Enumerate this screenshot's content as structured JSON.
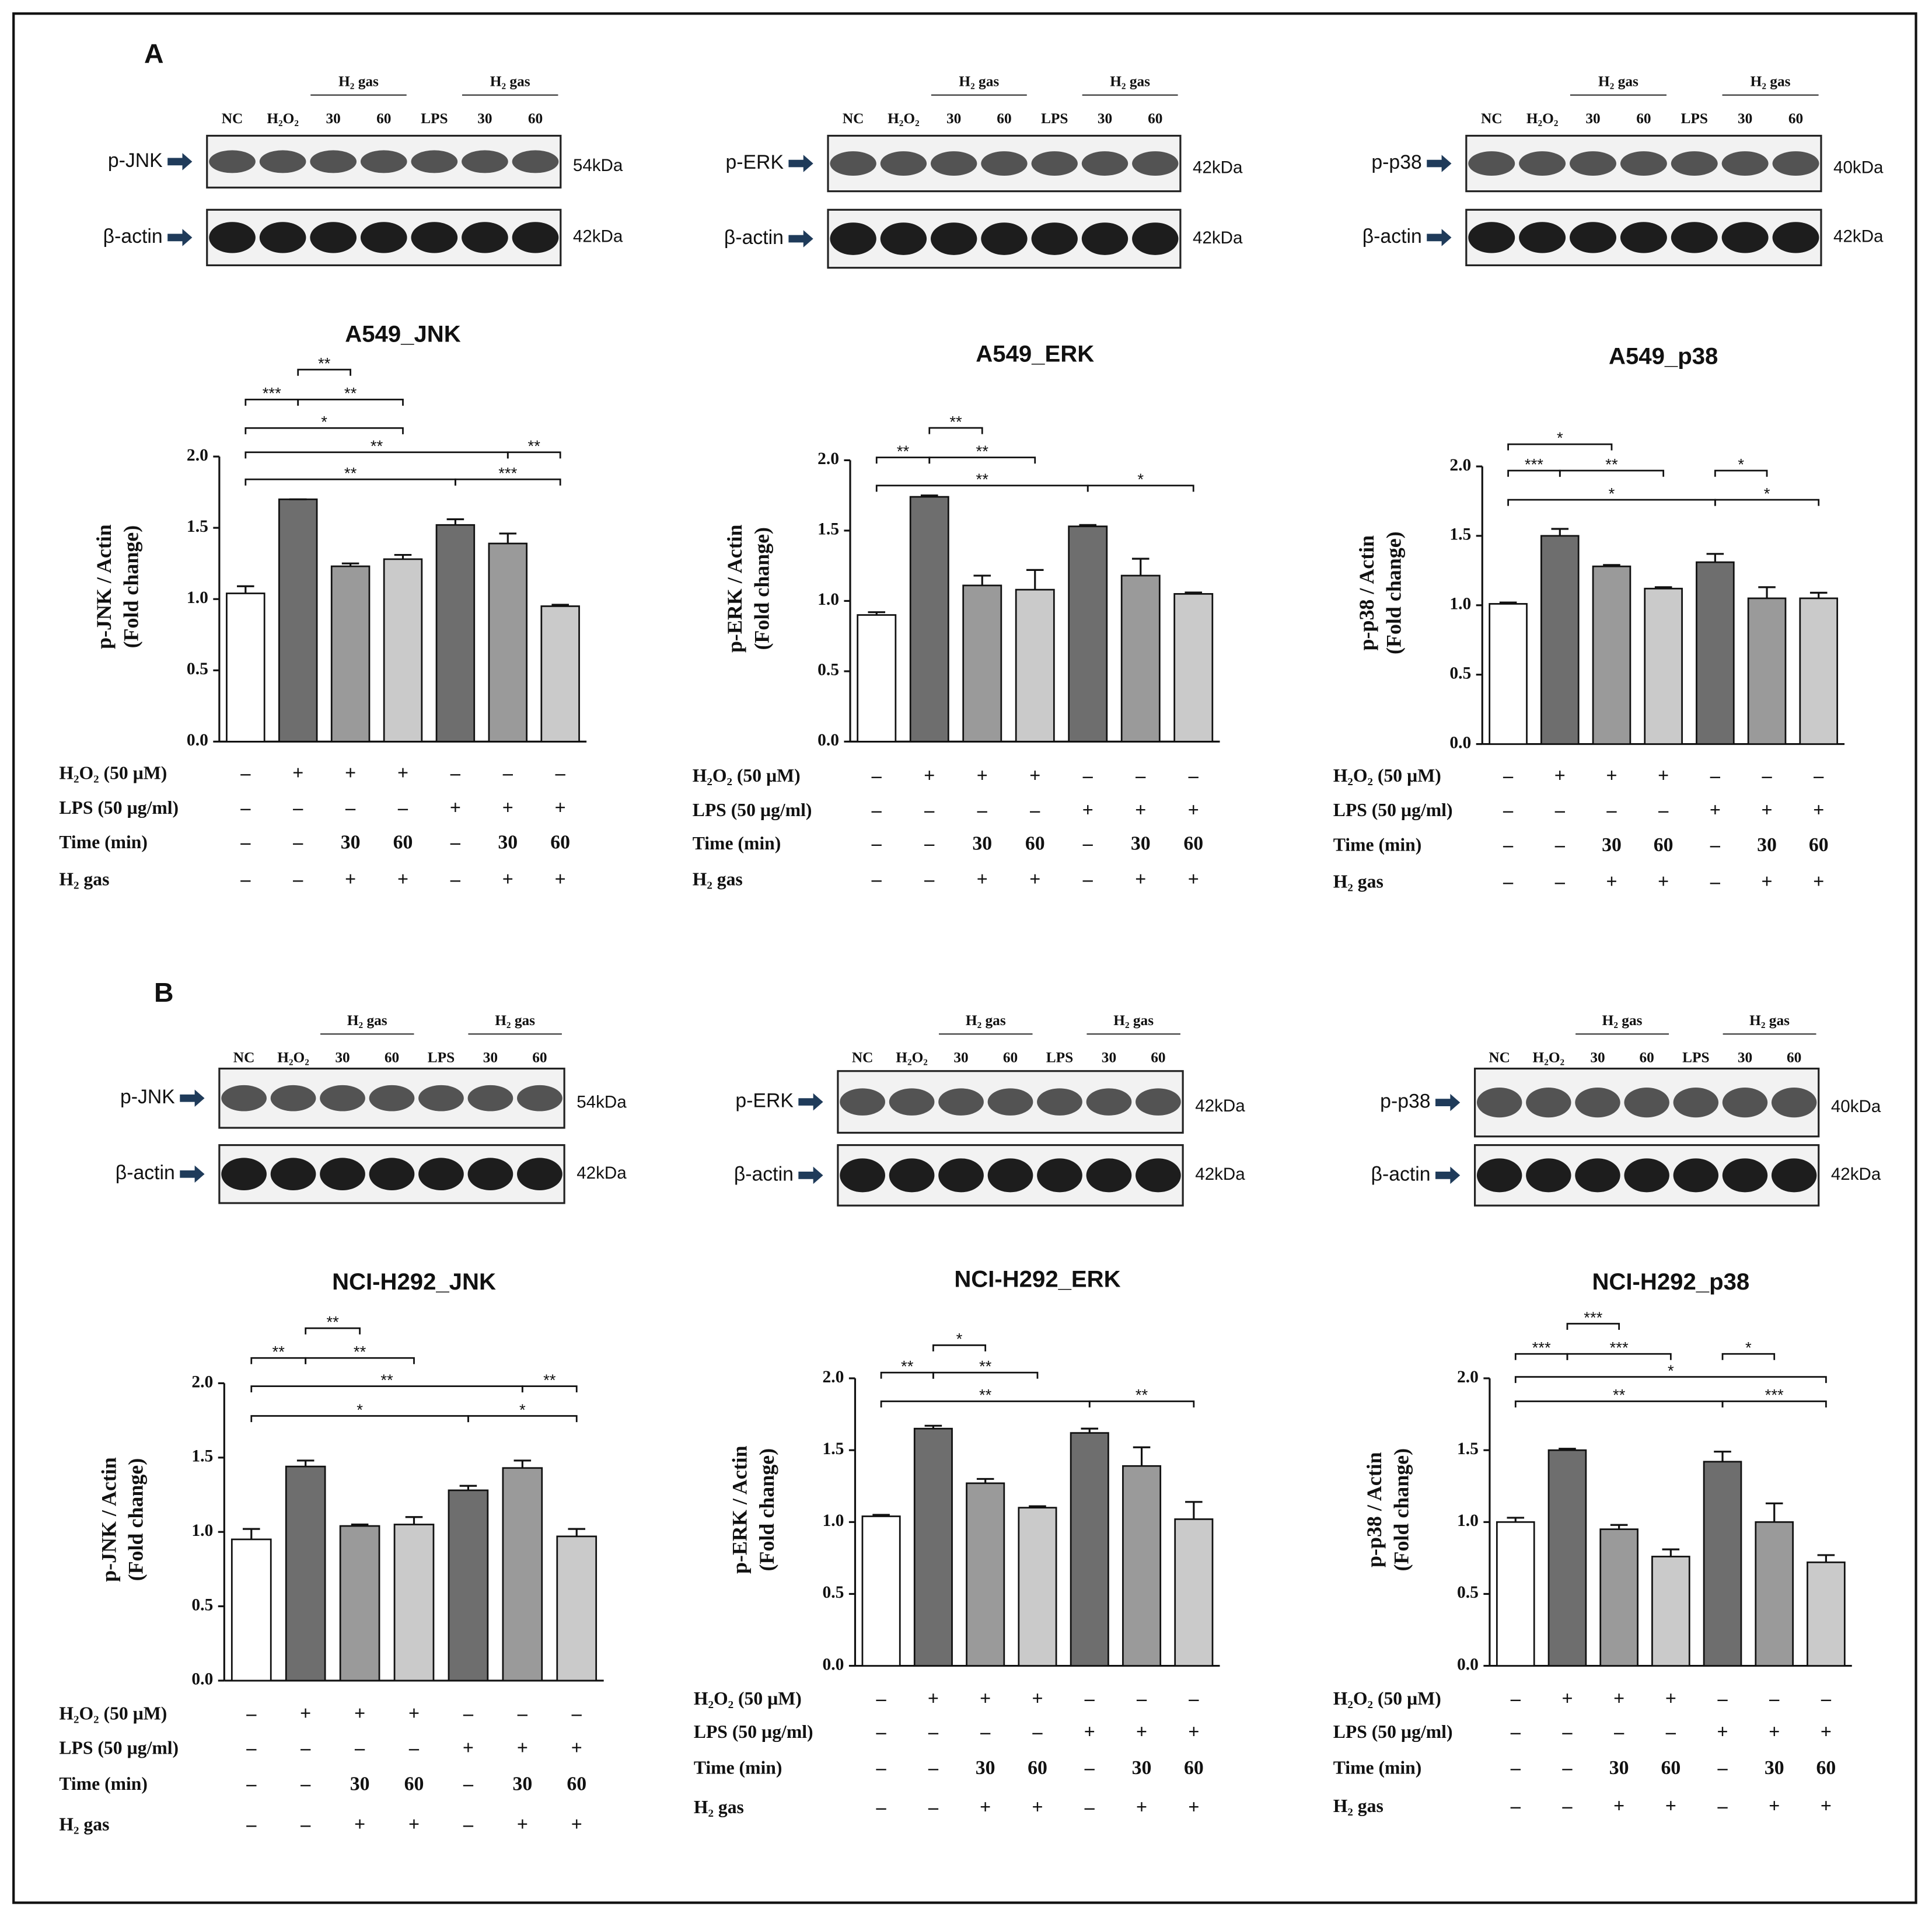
{
  "panel_labels": [
    "A",
    "B"
  ],
  "blots": [
    {
      "lanes": [
        "NC",
        "H₂O₂",
        "30",
        "60",
        "LPS",
        "30",
        "60"
      ],
      "groups": [
        "H₂ gas",
        "H₂ gas"
      ],
      "rows": [
        {
          "name": "p-JNK",
          "size": "54kDa"
        },
        {
          "name": "β-actin",
          "size": "42kDa"
        }
      ]
    },
    {
      "lanes": [
        "NC",
        "H₂O₂",
        "30",
        "60",
        "LPS",
        "30",
        "60"
      ],
      "groups": [
        "H₂ gas",
        "H₂ gas"
      ],
      "rows": [
        {
          "name": "p-ERK",
          "size": "42kDa"
        },
        {
          "name": "β-actin",
          "size": "42kDa"
        }
      ]
    },
    {
      "lanes": [
        "NC",
        "H₂O₂",
        "30",
        "60",
        "LPS",
        "30",
        "60"
      ],
      "groups": [
        "H₂ gas",
        "H₂ gas"
      ],
      "rows": [
        {
          "name": "p-p38",
          "size": "40kDa"
        },
        {
          "name": "β-actin",
          "size": "42kDa"
        }
      ]
    },
    {
      "lanes": [
        "NC",
        "H₂O₂",
        "30",
        "60",
        "LPS",
        "30",
        "60"
      ],
      "groups": [
        "H₂ gas",
        "H₂ gas"
      ],
      "rows": [
        {
          "name": "p-JNK",
          "size": "54kDa"
        },
        {
          "name": "β-actin",
          "size": "42kDa"
        }
      ]
    },
    {
      "lanes": [
        "NC",
        "H₂O₂",
        "30",
        "60",
        "LPS",
        "30",
        "60"
      ],
      "groups": [
        "H₂ gas",
        "H₂ gas"
      ],
      "rows": [
        {
          "name": "p-ERK",
          "size": "42kDa"
        },
        {
          "name": "β-actin",
          "size": "42kDa"
        }
      ]
    },
    {
      "lanes": [
        "NC",
        "H₂O₂",
        "30",
        "60",
        "LPS",
        "30",
        "60"
      ],
      "groups": [
        "H₂ gas",
        "H₂ gas"
      ],
      "rows": [
        {
          "name": "p-p38",
          "size": "40kDa"
        },
        {
          "name": "β-actin",
          "size": "42kDa"
        }
      ]
    }
  ],
  "chart_data": [
    {
      "type": "bar",
      "title": "A549_JNK",
      "y_label": [
        "p-JNK / Actin",
        "(Fold change)"
      ],
      "categories": [
        null,
        null,
        null,
        null,
        null,
        null,
        null
      ],
      "values": [
        1.04,
        1.7,
        1.23,
        1.28,
        1.52,
        1.39,
        0.95
      ],
      "errors": [
        0.05,
        0,
        0.02,
        0.03,
        0.04,
        0.07,
        0.01
      ],
      "colors": [
        "#ffffff",
        "#6e6e6e",
        "#9a9a9a",
        "#cacaca",
        "#6e6e6e",
        "#9a9a9a",
        "#cacaca"
      ],
      "ylim": [
        0,
        2
      ],
      "yticks": [
        {
          "value": 0,
          "label": "0.0"
        },
        0.5,
        {
          "value": 1,
          "label": "1.0"
        },
        1.5,
        {
          "value": 2,
          "label": "2.0"
        }
      ],
      "annotations": [
        {
          "from": 1,
          "to": 2,
          "label": "**",
          "y": 2.61
        },
        {
          "from": 0,
          "to": 1,
          "label": "***",
          "y": 2.4
        },
        {
          "from": 1,
          "to": 3,
          "label": "**",
          "y": 2.4
        },
        {
          "from": 0,
          "to": 3,
          "label": "*",
          "y": 2.2
        },
        {
          "from": 0,
          "to": 5,
          "label": "**",
          "y": 2.03
        },
        {
          "from": 5,
          "to": 6,
          "label": "**",
          "y": 2.03
        },
        {
          "from": 0,
          "to": 4,
          "label": "**",
          "y": 1.84
        },
        {
          "from": 4,
          "to": 6,
          "label": "***",
          "y": 1.84
        }
      ],
      "conditions": [
        {
          "name": "H₂O₂ (50 µM)",
          "values": [
            "–",
            "+",
            "+",
            "+",
            "–",
            "–",
            "–"
          ]
        },
        {
          "name": "LPS (50 µg/ml)",
          "values": [
            "–",
            "–",
            "–",
            "–",
            "+",
            "+",
            "+"
          ]
        },
        {
          "name": "Time (min)",
          "values": [
            "–",
            "–",
            "30",
            "60",
            "–",
            "30",
            "60"
          ]
        },
        {
          "name": "H₂ gas",
          "values": [
            "–",
            "–",
            "+",
            "+",
            "–",
            "+",
            "+"
          ]
        }
      ]
    },
    {
      "type": "bar",
      "title": "A549_ERK",
      "y_label": [
        "p-ERK / Actin",
        "(Fold change)"
      ],
      "categories": [
        null,
        null,
        null,
        null,
        null,
        null,
        null
      ],
      "values": [
        0.9,
        1.74,
        1.11,
        1.08,
        1.53,
        1.18,
        1.05
      ],
      "errors": [
        0.02,
        0.01,
        0.07,
        0.14,
        0.01,
        0.12,
        0.01
      ],
      "colors": [
        "#ffffff",
        "#6e6e6e",
        "#9a9a9a",
        "#cacaca",
        "#6e6e6e",
        "#9a9a9a",
        "#cacaca"
      ],
      "ylim": [
        0,
        2
      ],
      "yticks": [
        {
          "value": 0,
          "label": "0.0"
        },
        0.5,
        {
          "value": 1,
          "label": "1.0"
        },
        1.5,
        {
          "value": 2,
          "label": "2.0"
        }
      ],
      "annotations": [
        {
          "from": 1,
          "to": 2,
          "label": "**",
          "y": 2.23
        },
        {
          "from": 0,
          "to": 1,
          "label": "**",
          "y": 2.02
        },
        {
          "from": 1,
          "to": 3,
          "label": "**",
          "y": 2.02
        },
        {
          "from": 0,
          "to": 4,
          "label": "**",
          "y": 1.82
        },
        {
          "from": 4,
          "to": 6,
          "label": "*",
          "y": 1.82
        }
      ],
      "conditions": [
        {
          "name": "H₂O₂ (50 µM)",
          "values": [
            "–",
            "+",
            "+",
            "+",
            "–",
            "–",
            "–"
          ]
        },
        {
          "name": "LPS (50 µg/ml)",
          "values": [
            "–",
            "–",
            "–",
            "–",
            "+",
            "+",
            "+"
          ]
        },
        {
          "name": "Time (min)",
          "values": [
            "–",
            "–",
            "30",
            "60",
            "–",
            "30",
            "60"
          ]
        },
        {
          "name": "H₂ gas",
          "values": [
            "–",
            "–",
            "+",
            "+",
            "–",
            "+",
            "+"
          ]
        }
      ]
    },
    {
      "type": "bar",
      "title": "A549_p38",
      "y_label": [
        "p-p38 / Actin",
        "(Fold change)"
      ],
      "categories": [
        null,
        null,
        null,
        null,
        null,
        null,
        null
      ],
      "values": [
        1.01,
        1.5,
        1.28,
        1.12,
        1.31,
        1.05,
        1.05
      ],
      "errors": [
        0.01,
        0.05,
        0.01,
        0.01,
        0.06,
        0.08,
        0.04
      ],
      "colors": [
        "#ffffff",
        "#6e6e6e",
        "#9a9a9a",
        "#cacaca",
        "#6e6e6e",
        "#9a9a9a",
        "#cacaca"
      ],
      "ylim": [
        0,
        2
      ],
      "yticks": [
        {
          "value": 0,
          "label": "0.0"
        },
        0.5,
        {
          "value": 1,
          "label": "1.0"
        },
        1.5,
        {
          "value": 2,
          "label": "2.0"
        }
      ],
      "annotations": [
        {
          "from": 0,
          "to": 2,
          "label": "*",
          "y": 2.16
        },
        {
          "from": 0,
          "to": 1,
          "label": "***",
          "y": 1.97
        },
        {
          "from": 1,
          "to": 3,
          "label": "**",
          "y": 1.97
        },
        {
          "from": 4,
          "to": 5,
          "label": "*",
          "y": 1.97
        },
        {
          "from": 0,
          "to": 4,
          "label": "*",
          "y": 1.76
        },
        {
          "from": 4,
          "to": 6,
          "label": "*",
          "y": 1.76
        }
      ],
      "conditions": [
        {
          "name": "H₂O₂ (50 µM)",
          "values": [
            "–",
            "+",
            "+",
            "+",
            "–",
            "–",
            "–"
          ]
        },
        {
          "name": "LPS (50 µg/ml)",
          "values": [
            "–",
            "–",
            "–",
            "–",
            "+",
            "+",
            "+"
          ]
        },
        {
          "name": "Time (min)",
          "values": [
            "–",
            "–",
            "30",
            "60",
            "–",
            "30",
            "60"
          ]
        },
        {
          "name": "H₂ gas",
          "values": [
            "–",
            "–",
            "+",
            "+",
            "–",
            "+",
            "+"
          ]
        }
      ]
    },
    {
      "type": "bar",
      "title": "NCI-H292_JNK",
      "y_label": [
        "p-JNK / Actin",
        "(Fold change)"
      ],
      "categories": [
        null,
        null,
        null,
        null,
        null,
        null,
        null
      ],
      "values": [
        0.95,
        1.44,
        1.04,
        1.05,
        1.28,
        1.43,
        0.97
      ],
      "errors": [
        0.07,
        0.04,
        0.01,
        0.05,
        0.03,
        0.05,
        0.05
      ],
      "colors": [
        "#ffffff",
        "#6e6e6e",
        "#9a9a9a",
        "#cacaca",
        "#6e6e6e",
        "#9a9a9a",
        "#cacaca"
      ],
      "ylim": [
        0,
        2
      ],
      "yticks": [
        {
          "value": 0,
          "label": "0.0"
        },
        0.5,
        {
          "value": 1,
          "label": "1.0"
        },
        1.5,
        {
          "value": 2,
          "label": "2.0"
        }
      ],
      "annotations": [
        {
          "from": 1,
          "to": 2,
          "label": "**",
          "y": 2.37
        },
        {
          "from": 0,
          "to": 1,
          "label": "**",
          "y": 2.17
        },
        {
          "from": 1,
          "to": 3,
          "label": "**",
          "y": 2.17
        },
        {
          "from": 0,
          "to": 5,
          "label": "**",
          "y": 1.98
        },
        {
          "from": 5,
          "to": 6,
          "label": "**",
          "y": 1.98
        },
        {
          "from": 0,
          "to": 4,
          "label": "*",
          "y": 1.78
        },
        {
          "from": 4,
          "to": 6,
          "label": "*",
          "y": 1.78
        }
      ],
      "conditions": [
        {
          "name": "H₂O₂ (50 µM)",
          "values": [
            "–",
            "+",
            "+",
            "+",
            "–",
            "–",
            "–"
          ]
        },
        {
          "name": "LPS (50 µg/ml)",
          "values": [
            "–",
            "–",
            "–",
            "–",
            "+",
            "+",
            "+"
          ]
        },
        {
          "name": "Time (min)",
          "values": [
            "–",
            "–",
            "30",
            "60",
            "–",
            "30",
            "60"
          ]
        },
        {
          "name": "H₂ gas",
          "values": [
            "–",
            "–",
            "+",
            "+",
            "–",
            "+",
            "+"
          ]
        }
      ]
    },
    {
      "type": "bar",
      "title": "NCI-H292_ERK",
      "y_label": [
        "p-ERK / Actin",
        "(Fold change)"
      ],
      "categories": [
        null,
        null,
        null,
        null,
        null,
        null,
        null
      ],
      "values": [
        1.04,
        1.65,
        1.27,
        1.1,
        1.62,
        1.39,
        1.02
      ],
      "errors": [
        0.01,
        0.02,
        0.03,
        0.01,
        0.03,
        0.13,
        0.12
      ],
      "colors": [
        "#ffffff",
        "#6e6e6e",
        "#9a9a9a",
        "#cacaca",
        "#6e6e6e",
        "#9a9a9a",
        "#cacaca"
      ],
      "ylim": [
        0,
        2
      ],
      "yticks": [
        {
          "value": 0,
          "label": "0.0"
        },
        0.5,
        {
          "value": 1,
          "label": "1.0"
        },
        1.5,
        {
          "value": 2,
          "label": "2.0"
        }
      ],
      "annotations": [
        {
          "from": 1,
          "to": 2,
          "label": "*",
          "y": 2.23
        },
        {
          "from": 0,
          "to": 1,
          "label": "**",
          "y": 2.04
        },
        {
          "from": 1,
          "to": 3,
          "label": "**",
          "y": 2.04
        },
        {
          "from": 0,
          "to": 4,
          "label": "**",
          "y": 1.84
        },
        {
          "from": 4,
          "to": 6,
          "label": "**",
          "y": 1.84
        }
      ],
      "conditions": [
        {
          "name": "H₂O₂ (50 µM)",
          "values": [
            "–",
            "+",
            "+",
            "+",
            "–",
            "–",
            "–"
          ]
        },
        {
          "name": "LPS (50 µg/ml)",
          "values": [
            "–",
            "–",
            "–",
            "–",
            "+",
            "+",
            "+"
          ]
        },
        {
          "name": "Time (min)",
          "values": [
            "–",
            "–",
            "30",
            "60",
            "–",
            "30",
            "60"
          ]
        },
        {
          "name": "H₂ gas",
          "values": [
            "–",
            "–",
            "+",
            "+",
            "–",
            "+",
            "+"
          ]
        }
      ]
    },
    {
      "type": "bar",
      "title": "NCI-H292_p38",
      "y_label": [
        "p-p38 / Actin",
        "(Fold change)"
      ],
      "categories": [
        null,
        null,
        null,
        null,
        null,
        null,
        null
      ],
      "values": [
        1.0,
        1.5,
        0.95,
        0.76,
        1.42,
        1.0,
        0.72
      ],
      "errors": [
        0.03,
        0.01,
        0.03,
        0.05,
        0.07,
        0.13,
        0.05
      ],
      "colors": [
        "#ffffff",
        "#6e6e6e",
        "#9a9a9a",
        "#cacaca",
        "#6e6e6e",
        "#9a9a9a",
        "#cacaca"
      ],
      "ylim": [
        0,
        2
      ],
      "yticks": [
        {
          "value": 0,
          "label": "0.0"
        },
        0.5,
        {
          "value": 1,
          "label": "1.0"
        },
        1.5,
        {
          "value": 2,
          "label": "2.0"
        }
      ],
      "annotations": [
        {
          "from": 1,
          "to": 2,
          "label": "***",
          "y": 2.38
        },
        {
          "from": 0,
          "to": 1,
          "label": "***",
          "y": 2.17
        },
        {
          "from": 1,
          "to": 3,
          "label": "***",
          "y": 2.17
        },
        {
          "from": 4,
          "to": 5,
          "label": "*",
          "y": 2.17
        },
        {
          "from": 0,
          "to": 6,
          "label": "*",
          "y": 2.01
        },
        {
          "from": 0,
          "to": 4,
          "label": "**",
          "y": 1.84
        },
        {
          "from": 4,
          "to": 6,
          "label": "***",
          "y": 1.84
        }
      ],
      "conditions": [
        {
          "name": "H₂O₂ (50 µM)",
          "values": [
            "–",
            "+",
            "+",
            "+",
            "–",
            "–",
            "–"
          ]
        },
        {
          "name": "LPS (50 µg/ml)",
          "values": [
            "–",
            "–",
            "–",
            "–",
            "+",
            "+",
            "+"
          ]
        },
        {
          "name": "Time (min)",
          "values": [
            "–",
            "–",
            "30",
            "60",
            "–",
            "30",
            "60"
          ]
        },
        {
          "name": "H₂ gas",
          "values": [
            "–",
            "–",
            "+",
            "+",
            "–",
            "+",
            "+"
          ]
        }
      ]
    }
  ]
}
